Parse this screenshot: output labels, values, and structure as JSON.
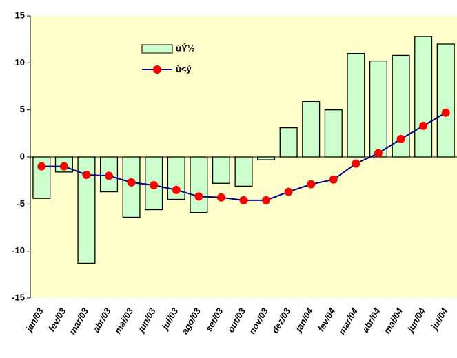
{
  "chart_data": {
    "type": "bar-line",
    "categories": [
      "jan/03",
      "fev/03",
      "mar/03",
      "abr/03",
      "mai/03",
      "jun/03",
      "jul/03",
      "ago/03",
      "set/03",
      "out/03",
      "nov/03",
      "dez/03",
      "jan/04",
      "fev/04",
      "mar/04",
      "abr/04",
      "mai/04",
      "jun/04",
      "jul/04"
    ],
    "series": [
      {
        "name": "ùÝ½",
        "type": "bar",
        "color": "#ccffcc",
        "values": [
          -4.4,
          -1.6,
          -11.3,
          -3.7,
          -6.4,
          -5.6,
          -4.5,
          -5.9,
          -2.8,
          -3.1,
          -0.3,
          3.1,
          5.9,
          5.0,
          11.0,
          10.2,
          10.8,
          12.8,
          12.0
        ]
      },
      {
        "name": "ù<ý",
        "type": "line",
        "color": "#000080",
        "marker_color": "#ff0000",
        "values": [
          -1.0,
          -1.0,
          -1.9,
          -2.0,
          -2.7,
          -3.0,
          -3.5,
          -4.2,
          -4.3,
          -4.6,
          -4.6,
          -3.7,
          -2.9,
          -2.4,
          -0.7,
          0.4,
          1.9,
          3.3,
          4.7
        ]
      }
    ],
    "ylim": [
      -15,
      15
    ],
    "yticks": [
      -15,
      -10,
      -5,
      0,
      5,
      10,
      15
    ],
    "grid": false
  }
}
